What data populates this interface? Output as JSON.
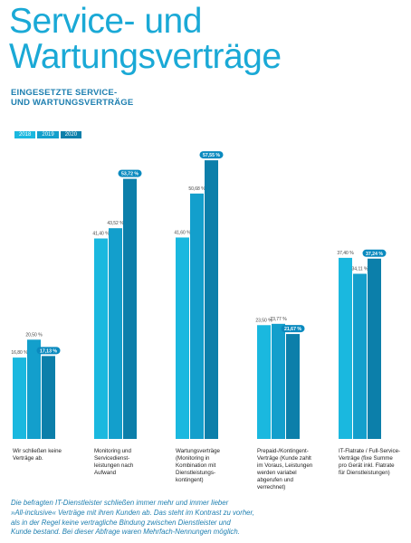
{
  "header": {
    "title_line1": "Service- und",
    "title_line2": "Wartungsverträge",
    "subtitle_line1": "EINGESETZTE SERVICE-",
    "subtitle_line2": "UND WARTUNGSVERTRÄGE"
  },
  "colors": {
    "series_2018": "#1ab8df",
    "series_2019": "#139fcc",
    "series_2020": "#0c7faa",
    "highlight_label_bg": "#0a8abf",
    "text_dark": "#222222",
    "accent": "#1aa9d6"
  },
  "chart_data": {
    "type": "bar",
    "title": "EINGESETZTE SERVICE- UND WARTUNGSVERTRÄGE",
    "categories": [
      [
        "Wir schließen keine",
        "Verträge ab."
      ],
      [
        "Monitoring und",
        "Servicedienst-",
        "leistungen nach",
        "Aufwand"
      ],
      [
        "Wartungsverträge",
        "(Monitoring in",
        "Kombination mit",
        "Dienstleistungs-",
        "kontingent)"
      ],
      [
        "Prepaid-/Kontingent-",
        "Verträge (Kunde zahlt",
        "im Voraus, Leistungen",
        "werden variabel",
        "abgerufen und",
        "verrechnet)"
      ],
      [
        "IT-Flatrate / Full-Service-",
        "Verträge (fixe Summe",
        "pro Gerät inkl. Flatrate",
        "für Dienstleistungen)"
      ]
    ],
    "series": [
      {
        "name": "2018",
        "values": [
          16.8,
          41.4,
          41.6,
          23.5,
          37.4
        ],
        "labels": [
          "16,80 %",
          "41,40 %",
          "41,60 %",
          "23,50 %",
          "37,40 %"
        ]
      },
      {
        "name": "2019",
        "values": [
          20.5,
          43.52,
          50.68,
          23.77,
          34.11
        ],
        "labels": [
          "20,50 %",
          "43,52 %",
          "50,68 %",
          "23,77 %",
          "34,11 %"
        ]
      },
      {
        "name": "2020",
        "values": [
          17.13,
          53.72,
          57.55,
          21.67,
          37.24
        ],
        "labels": [
          "17,13 %",
          "53,72 %",
          "57,55 %",
          "21,67 %",
          "37,24 %"
        ]
      }
    ],
    "highlight_series": "2020",
    "xlabel": "",
    "ylabel": "",
    "ylim": [
      0,
      70
    ],
    "grid": false,
    "legend_placement": "top-left"
  },
  "footnote": {
    "line1": "Die befragten IT-Dienstleister schließen immer mehr und immer lieber",
    "line2": "»All-inclusive« Verträge mit ihren Kunden ab. Das steht im Kontrast zu vorher,",
    "line3": "als in der Regel keine vertragliche Bindung zwischen Dienstleister und",
    "line4": "Kunde bestand. Bei dieser Abfrage waren Mehrfach-Nennungen möglich."
  }
}
